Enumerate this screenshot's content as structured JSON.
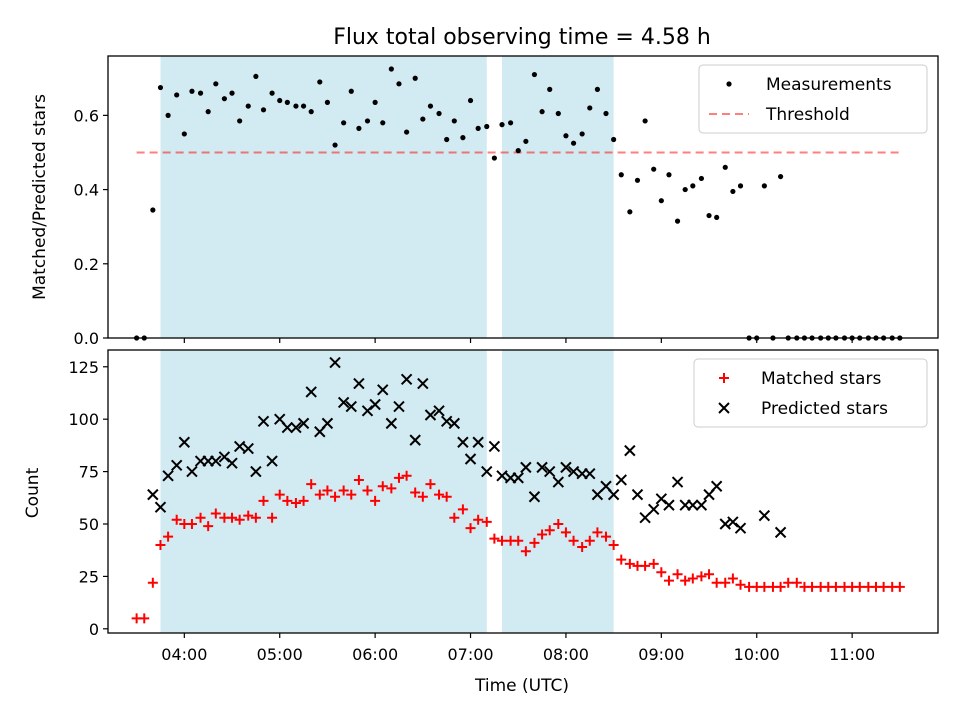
{
  "figure": {
    "title": "Flux total observing time = 4.58 h"
  },
  "colors": {
    "shade": "#add8e6",
    "threshold": "#ff0000",
    "measurements": "#000000",
    "matched": "#ff0000",
    "predicted": "#000000"
  },
  "chart_data": [
    {
      "type": "scatter",
      "panel": "top",
      "ylabel": "Matched/Predicted stars",
      "xlabel": "",
      "xlim": [
        3.2,
        11.9
      ],
      "ylim": [
        0,
        0.76
      ],
      "yticks": [
        0,
        0.2,
        0.4,
        0.6
      ],
      "ytick_labels": [
        "0.0",
        "0.2",
        "0.4",
        "0.6"
      ],
      "xticks": [
        4,
        5,
        6,
        7,
        8,
        9,
        10,
        11
      ],
      "grid": false,
      "legend": {
        "position": "top-right",
        "entries": [
          "Measurements",
          "Threshold"
        ]
      },
      "shaded_intervals": [
        [
          3.75,
          7.17
        ],
        [
          7.33,
          8.5
        ]
      ],
      "threshold": {
        "name": "Threshold",
        "y": 0.5,
        "x_range": [
          3.5,
          11.5
        ]
      },
      "series": [
        {
          "name": "Measurements",
          "x": [
            3.5,
            3.58,
            3.67,
            3.75,
            3.83,
            3.92,
            4.0,
            4.08,
            4.17,
            4.25,
            4.33,
            4.42,
            4.5,
            4.58,
            4.67,
            4.75,
            4.83,
            4.92,
            5.0,
            5.08,
            5.17,
            5.25,
            5.33,
            5.42,
            5.5,
            5.58,
            5.67,
            5.75,
            5.83,
            5.92,
            6.0,
            6.08,
            6.17,
            6.25,
            6.33,
            6.42,
            6.5,
            6.58,
            6.67,
            6.75,
            6.83,
            6.92,
            7.0,
            7.08,
            7.17,
            7.25,
            7.33,
            7.42,
            7.5,
            7.58,
            7.67,
            7.75,
            7.83,
            7.92,
            8.0,
            8.08,
            8.17,
            8.25,
            8.33,
            8.42,
            8.5,
            8.58,
            8.67,
            8.75,
            8.83,
            8.92,
            9.0,
            9.08,
            9.17,
            9.25,
            9.33,
            9.42,
            9.5,
            9.58,
            9.67,
            9.75,
            9.83,
            9.92,
            10.0,
            10.08,
            10.17,
            10.25,
            10.33,
            10.42,
            10.5,
            10.58,
            10.67,
            10.75,
            10.83,
            10.92,
            11.0,
            11.08,
            11.17,
            11.25,
            11.33,
            11.42,
            11.5
          ],
          "y": [
            0,
            0,
            0.345,
            0.675,
            0.6,
            0.655,
            0.55,
            0.665,
            0.66,
            0.61,
            0.685,
            0.645,
            0.66,
            0.585,
            0.625,
            0.705,
            0.615,
            0.66,
            0.64,
            0.635,
            0.625,
            0.625,
            0.61,
            0.69,
            0.635,
            0.52,
            0.58,
            0.665,
            0.565,
            0.585,
            0.635,
            0.58,
            0.725,
            0.685,
            0.555,
            0.7,
            0.59,
            0.625,
            0.605,
            0.535,
            0.585,
            0.54,
            0.64,
            0.565,
            0.57,
            0.485,
            0.575,
            0.58,
            0.505,
            0.53,
            0.71,
            0.61,
            0.67,
            0.605,
            0.545,
            0.525,
            0.55,
            0.62,
            0.67,
            0.605,
            0.535,
            0.44,
            0.34,
            0.425,
            0.585,
            0.455,
            0.37,
            0.44,
            0.315,
            0.4,
            0.41,
            0.43,
            0.33,
            0.325,
            0.46,
            0.395,
            0.41,
            0,
            0,
            0.41,
            0,
            0.435,
            0,
            0,
            0,
            0,
            0,
            0,
            0,
            0,
            0,
            0,
            0,
            0,
            0,
            0,
            0
          ]
        }
      ]
    },
    {
      "type": "scatter",
      "panel": "bottom",
      "ylabel": "Count",
      "xlabel": "Time (UTC)",
      "xlim": [
        3.2,
        11.9
      ],
      "ylim": [
        -2,
        133
      ],
      "yticks": [
        0,
        25,
        50,
        75,
        100,
        125
      ],
      "ytick_labels": [
        "0",
        "25",
        "50",
        "75",
        "100",
        "125"
      ],
      "xticks": [
        4,
        5,
        6,
        7,
        8,
        9,
        10,
        11
      ],
      "xtick_labels": [
        "04:00",
        "05:00",
        "06:00",
        "07:00",
        "08:00",
        "09:00",
        "10:00",
        "11:00"
      ],
      "grid": false,
      "legend": {
        "position": "top-right",
        "entries": [
          "Matched stars",
          "Predicted stars"
        ]
      },
      "shaded_intervals": [
        [
          3.75,
          7.17
        ],
        [
          7.33,
          8.5
        ]
      ],
      "series": [
        {
          "name": "Matched stars",
          "x": [
            3.5,
            3.58,
            3.67,
            3.75,
            3.83,
            3.92,
            4.0,
            4.08,
            4.17,
            4.25,
            4.33,
            4.42,
            4.5,
            4.58,
            4.67,
            4.75,
            4.83,
            4.92,
            5.0,
            5.08,
            5.17,
            5.25,
            5.33,
            5.42,
            5.5,
            5.58,
            5.67,
            5.75,
            5.83,
            5.92,
            6.0,
            6.08,
            6.17,
            6.25,
            6.33,
            6.42,
            6.5,
            6.58,
            6.67,
            6.75,
            6.83,
            6.92,
            7.0,
            7.08,
            7.17,
            7.25,
            7.33,
            7.42,
            7.5,
            7.58,
            7.67,
            7.75,
            7.83,
            7.92,
            8.0,
            8.08,
            8.17,
            8.25,
            8.33,
            8.42,
            8.5,
            8.58,
            8.67,
            8.75,
            8.83,
            8.92,
            9.0,
            9.08,
            9.17,
            9.25,
            9.33,
            9.42,
            9.5,
            9.58,
            9.67,
            9.75,
            9.83,
            9.92,
            10.0,
            10.08,
            10.17,
            10.25,
            10.33,
            10.42,
            10.5,
            10.58,
            10.67,
            10.75,
            10.83,
            10.92,
            11.0,
            11.08,
            11.17,
            11.25,
            11.33,
            11.42,
            11.5
          ],
          "y": [
            5,
            5,
            22,
            40,
            44,
            52,
            50,
            50,
            53,
            49,
            55,
            53,
            53,
            52,
            54,
            53,
            61,
            53,
            64,
            61,
            60,
            61,
            69,
            64,
            66,
            63,
            66,
            64,
            71,
            66,
            61,
            68,
            67,
            72,
            73,
            65,
            63,
            69,
            64,
            63,
            53,
            57,
            48,
            52,
            51,
            43,
            42,
            42,
            42,
            37,
            41,
            45,
            47,
            50,
            46,
            42,
            39,
            42,
            46,
            44,
            40,
            33,
            31,
            30,
            30,
            31,
            27,
            23,
            26,
            23,
            24,
            25,
            26,
            22,
            22,
            24,
            21,
            20,
            20,
            20,
            20,
            20,
            22,
            22,
            20,
            20,
            20,
            20,
            20,
            20,
            20,
            20,
            20,
            20,
            20,
            20,
            20
          ]
        },
        {
          "name": "Predicted stars",
          "x": [
            3.67,
            3.75,
            3.83,
            3.92,
            4.0,
            4.08,
            4.17,
            4.25,
            4.33,
            4.42,
            4.5,
            4.58,
            4.67,
            4.75,
            4.83,
            4.92,
            5.0,
            5.08,
            5.17,
            5.25,
            5.33,
            5.42,
            5.5,
            5.58,
            5.67,
            5.75,
            5.83,
            5.92,
            6.0,
            6.08,
            6.17,
            6.25,
            6.33,
            6.42,
            6.5,
            6.58,
            6.67,
            6.75,
            6.83,
            6.92,
            7.0,
            7.08,
            7.17,
            7.25,
            7.33,
            7.42,
            7.5,
            7.58,
            7.67,
            7.75,
            7.83,
            7.92,
            8.0,
            8.08,
            8.17,
            8.25,
            8.33,
            8.42,
            8.5,
            8.58,
            8.67,
            8.75,
            8.83,
            8.92,
            9.0,
            9.08,
            9.17,
            9.25,
            9.33,
            9.42,
            9.5,
            9.58,
            9.67,
            9.75,
            9.83,
            10.08,
            10.25
          ],
          "y": [
            64,
            58,
            73,
            78,
            89,
            75,
            80,
            80,
            80,
            82,
            79,
            87,
            86,
            75,
            99,
            80,
            100,
            96,
            96,
            98,
            113,
            94,
            98,
            127,
            108,
            106,
            117,
            104,
            107,
            114,
            98,
            106,
            119,
            90,
            117,
            102,
            104,
            99,
            98,
            89,
            81,
            89,
            75,
            87,
            73,
            72,
            72,
            77,
            63,
            77,
            75,
            70,
            77,
            75,
            74,
            74,
            64,
            68,
            64,
            71,
            85,
            64,
            53,
            57,
            62,
            59,
            70,
            59,
            59,
            59,
            64,
            68,
            50,
            51,
            48,
            54,
            46
          ]
        }
      ]
    }
  ]
}
